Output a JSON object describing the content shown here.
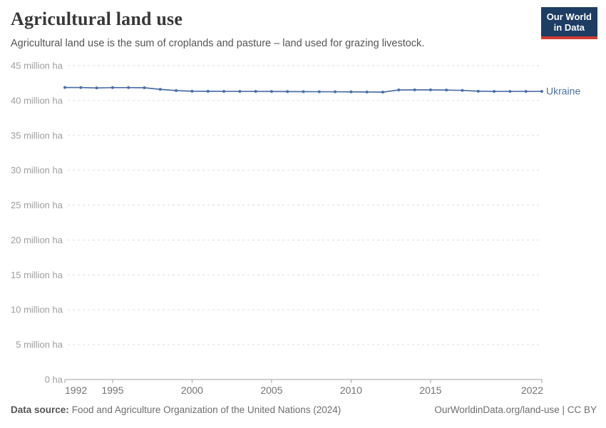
{
  "header": {
    "title": "Agricultural land use",
    "subtitle": "Agricultural land use is the sum of croplands and pasture – land used for grazing livestock.",
    "logo": {
      "line1": "Our World",
      "line2": "in Data"
    }
  },
  "chart_data": {
    "type": "line",
    "title": "Agricultural land use",
    "unit": "million ha",
    "grid": "horizontal-dashed",
    "legend_position": "end-of-line",
    "ylim": [
      0,
      45
    ],
    "xlim": [
      1992,
      2022
    ],
    "x": [
      1992,
      1993,
      1994,
      1995,
      1996,
      1997,
      1998,
      1999,
      2000,
      2001,
      2002,
      2003,
      2004,
      2005,
      2006,
      2007,
      2008,
      2009,
      2010,
      2011,
      2012,
      2013,
      2014,
      2015,
      2016,
      2017,
      2018,
      2019,
      2020,
      2021,
      2022
    ],
    "series": [
      {
        "name": "Ukraine",
        "color": "#4c6fa5",
        "values": [
          41.87,
          41.86,
          41.8,
          41.85,
          41.85,
          41.83,
          41.6,
          41.42,
          41.33,
          41.32,
          41.31,
          41.3,
          41.3,
          41.29,
          41.28,
          41.27,
          41.26,
          41.25,
          41.24,
          41.22,
          41.2,
          41.51,
          41.52,
          41.52,
          41.5,
          41.45,
          41.33,
          41.3,
          41.3,
          41.3,
          41.31
        ]
      }
    ],
    "yticks": [
      {
        "value": 45,
        "label": "45 million ha"
      },
      {
        "value": 40,
        "label": "40 million ha"
      },
      {
        "value": 35,
        "label": "35 million ha"
      },
      {
        "value": 30,
        "label": "30 million ha"
      },
      {
        "value": 25,
        "label": "25 million ha"
      },
      {
        "value": 20,
        "label": "20 million ha"
      },
      {
        "value": 15,
        "label": "15 million ha"
      },
      {
        "value": 10,
        "label": "10 million ha"
      },
      {
        "value": 5,
        "label": "5 million ha"
      },
      {
        "value": 0,
        "label": "0 ha"
      }
    ],
    "xticks": [
      1992,
      1995,
      2000,
      2005,
      2010,
      2015,
      2022
    ]
  },
  "footer": {
    "datasource_label": "Data source:",
    "datasource_text": "Food and Agriculture Organization of the United Nations (2024)",
    "right_text": "OurWorldinData.org/land-use | CC BY"
  },
  "colors": {
    "line": "#4c6fa5",
    "gridline": "#dddddd",
    "axis": "#a1a1a1",
    "logo_navy": "#1d3d63",
    "logo_red": "#d13c32"
  }
}
